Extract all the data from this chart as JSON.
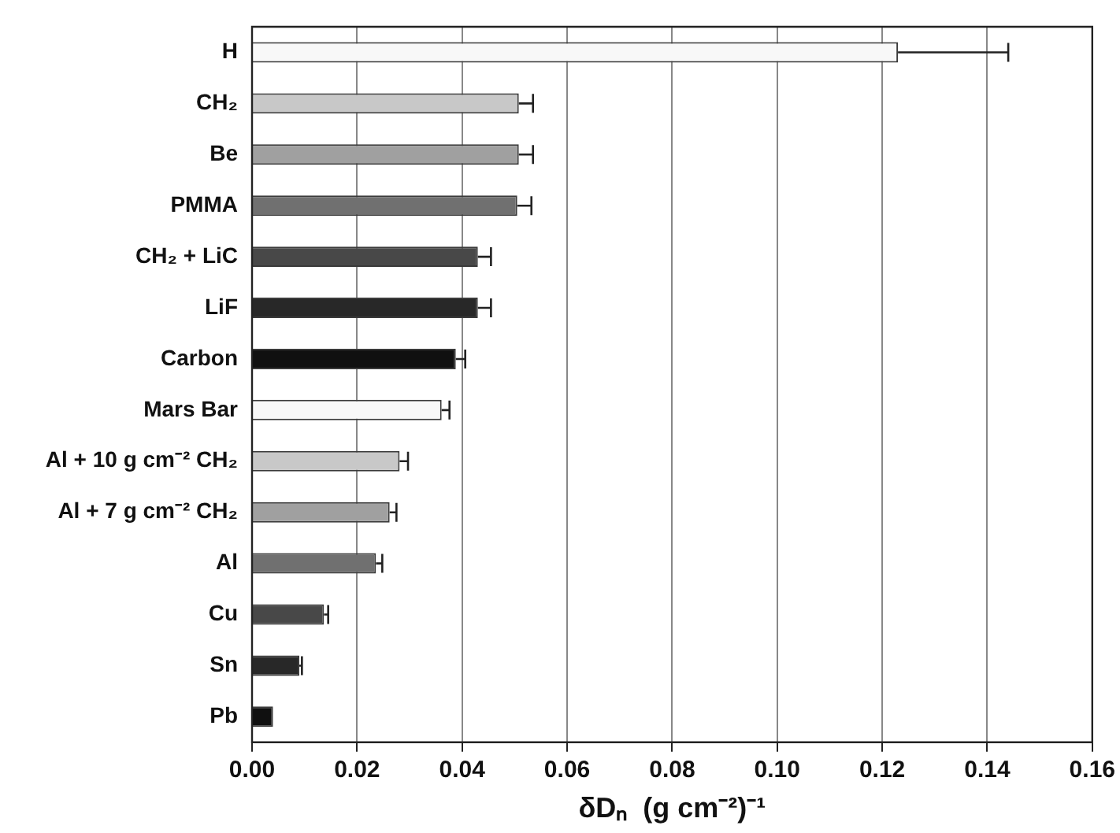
{
  "chart_data": {
    "type": "bar",
    "orientation": "horizontal",
    "xlabel": "δDₙ  (g cm⁻²)⁻¹",
    "categories": [
      "H",
      "CH₂",
      "Be",
      "PMMA",
      "CH₂ + LiC",
      "LiF",
      "Carbon",
      "Mars Bar",
      "Al + 10 g cm⁻² CH₂",
      "Al + 7 g cm⁻² CH₂",
      "Al",
      "Cu",
      "Sn",
      "Pb"
    ],
    "values": [
      0.123,
      0.0508,
      0.0508,
      0.0505,
      0.043,
      0.043,
      0.0388,
      0.0361,
      0.0281,
      0.0262,
      0.0236,
      0.0137,
      0.009,
      0.004
    ],
    "errors": [
      [
        0.123,
        0.144
      ],
      [
        0.0508,
        0.0535
      ],
      [
        0.0508,
        0.0535
      ],
      [
        0.0505,
        0.0532
      ],
      [
        0.043,
        0.0455
      ],
      [
        0.043,
        0.0455
      ],
      [
        0.0388,
        0.0406
      ],
      [
        0.0361,
        0.0376
      ],
      [
        0.0281,
        0.0297
      ],
      [
        0.0262,
        0.0275
      ],
      [
        0.0236,
        0.0248
      ],
      [
        0.0137,
        0.0145
      ],
      [
        0.009,
        0.0095
      ],
      null
    ],
    "colors": [
      "#f8f8f8",
      "#c8c8c8",
      "#a0a0a0",
      "#707070",
      "#484848",
      "#282828",
      "#101010",
      "#f8f8f8",
      "#c8c8c8",
      "#a0a0a0",
      "#707070",
      "#484848",
      "#282828",
      "#101010"
    ],
    "xlim": [
      0,
      0.16
    ],
    "xticks": [
      {
        "value": 0,
        "label": "0.00"
      },
      {
        "value": 0.02,
        "label": "0.02"
      },
      {
        "value": 0.04,
        "label": "0.04"
      },
      {
        "value": 0.06,
        "label": "0.06"
      },
      {
        "value": 0.08,
        "label": "0.08"
      },
      {
        "value": 0.1,
        "label": "0.10"
      },
      {
        "value": 0.12,
        "label": "0.12"
      },
      {
        "value": 0.14,
        "label": "0.14"
      },
      {
        "value": 0.16,
        "label": "0.16"
      }
    ],
    "grid": "x",
    "legend": false
  }
}
